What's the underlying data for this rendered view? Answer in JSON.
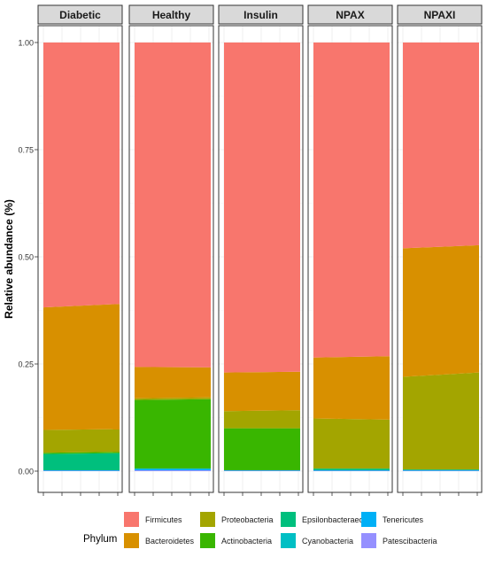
{
  "chart_data": {
    "type": "area",
    "layout": "stacked",
    "ylabel": "Relative abundance (%)",
    "ylim": [
      0,
      1
    ],
    "yticks": [
      "0.00",
      "0.25",
      "0.50",
      "0.75",
      "1.00"
    ],
    "grid": true,
    "facets": [
      {
        "name": "Diabetic",
        "stacks": [
          {
            "phylum": "Patescibacteria",
            "values": [
              0.001,
              0.001
            ]
          },
          {
            "phylum": "Tenericutes",
            "values": [
              0.001,
              0.001
            ]
          },
          {
            "phylum": "Cyanobacteria",
            "values": [
              0.0,
              0.0
            ]
          },
          {
            "phylum": "Epsilonbacteraeota",
            "values": [
              0.038,
              0.04
            ]
          },
          {
            "phylum": "Actinobacteria",
            "values": [
              0.003,
              0.003
            ]
          },
          {
            "phylum": "Proteobacteria",
            "values": [
              0.053,
              0.053
            ]
          },
          {
            "phylum": "Bacteroidetes",
            "values": [
              0.286,
              0.292
            ]
          },
          {
            "phylum": "Firmicutes",
            "values": [
              0.618,
              0.61
            ]
          }
        ]
      },
      {
        "name": "Healthy",
        "stacks": [
          {
            "phylum": "Patescibacteria",
            "values": [
              0.002,
              0.002
            ]
          },
          {
            "phylum": "Tenericutes",
            "values": [
              0.004,
              0.004
            ]
          },
          {
            "phylum": "Cyanobacteria",
            "values": [
              0.0,
              0.0
            ]
          },
          {
            "phylum": "Epsilonbacteraeota",
            "values": [
              0.0,
              0.0
            ]
          },
          {
            "phylum": "Actinobacteria",
            "values": [
              0.16,
              0.162
            ]
          },
          {
            "phylum": "Proteobacteria",
            "values": [
              0.004,
              0.004
            ]
          },
          {
            "phylum": "Bacteroidetes",
            "values": [
              0.073,
              0.07
            ]
          },
          {
            "phylum": "Firmicutes",
            "values": [
              0.757,
              0.758
            ]
          }
        ]
      },
      {
        "name": "Insulin",
        "stacks": [
          {
            "phylum": "Patescibacteria",
            "values": [
              0.001,
              0.001
            ]
          },
          {
            "phylum": "Tenericutes",
            "values": [
              0.001,
              0.001
            ]
          },
          {
            "phylum": "Cyanobacteria",
            "values": [
              0.0,
              0.0
            ]
          },
          {
            "phylum": "Epsilonbacteraeota",
            "values": [
              0.0,
              0.0
            ]
          },
          {
            "phylum": "Actinobacteria",
            "values": [
              0.098,
              0.098
            ]
          },
          {
            "phylum": "Proteobacteria",
            "values": [
              0.04,
              0.042
            ]
          },
          {
            "phylum": "Bacteroidetes",
            "values": [
              0.09,
              0.09
            ]
          },
          {
            "phylum": "Firmicutes",
            "values": [
              0.77,
              0.768
            ]
          }
        ]
      },
      {
        "name": "NPAX",
        "stacks": [
          {
            "phylum": "Patescibacteria",
            "values": [
              0.001,
              0.001
            ]
          },
          {
            "phylum": "Tenericutes",
            "values": [
              0.001,
              0.001
            ]
          },
          {
            "phylum": "Cyanobacteria",
            "values": [
              0.0,
              0.0
            ]
          },
          {
            "phylum": "Epsilonbacteraeota",
            "values": [
              0.004,
              0.004
            ]
          },
          {
            "phylum": "Actinobacteria",
            "values": [
              0.0,
              0.0
            ]
          },
          {
            "phylum": "Proteobacteria",
            "values": [
              0.117,
              0.114
            ]
          },
          {
            "phylum": "Bacteroidetes",
            "values": [
              0.142,
              0.148
            ]
          },
          {
            "phylum": "Firmicutes",
            "values": [
              0.735,
              0.732
            ]
          }
        ]
      },
      {
        "name": "NPAXI",
        "stacks": [
          {
            "phylum": "Patescibacteria",
            "values": [
              0.001,
              0.001
            ]
          },
          {
            "phylum": "Tenericutes",
            "values": [
              0.001,
              0.001
            ]
          },
          {
            "phylum": "Cyanobacteria",
            "values": [
              0.0,
              0.0
            ]
          },
          {
            "phylum": "Epsilonbacteraeota",
            "values": [
              0.002,
              0.002
            ]
          },
          {
            "phylum": "Actinobacteria",
            "values": [
              0.0,
              0.0
            ]
          },
          {
            "phylum": "Proteobacteria",
            "values": [
              0.216,
              0.226
            ]
          },
          {
            "phylum": "Bacteroidetes",
            "values": [
              0.3,
              0.297
            ]
          },
          {
            "phylum": "Firmicutes",
            "values": [
              0.48,
              0.473
            ]
          }
        ]
      }
    ],
    "legend": {
      "title": "Phylum",
      "position": "bottom",
      "entries": [
        {
          "name": "Firmicutes",
          "color": "#F8766D"
        },
        {
          "name": "Bacteroidetes",
          "color": "#D89000"
        },
        {
          "name": "Proteobacteria",
          "color": "#A3A500"
        },
        {
          "name": "Actinobacteria",
          "color": "#39B600"
        },
        {
          "name": "Epsilonbacteraeota",
          "color": "#00BF7D"
        },
        {
          "name": "Cyanobacteria",
          "color": "#00BFC4"
        },
        {
          "name": "Tenericutes",
          "color": "#00B0F6"
        },
        {
          "name": "Patescibacteria",
          "color": "#9590FF"
        }
      ]
    }
  }
}
